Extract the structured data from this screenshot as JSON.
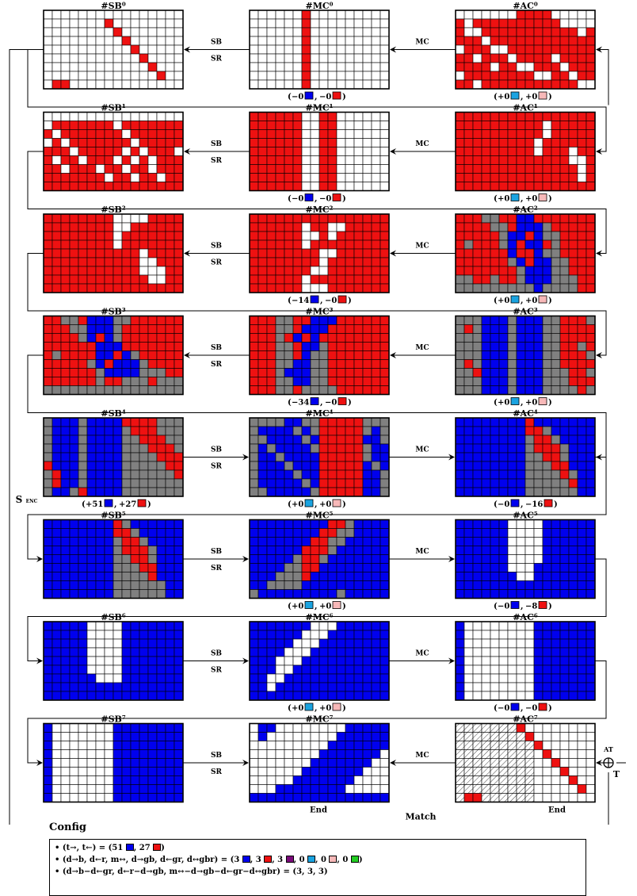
{
  "colors": {
    "blue": "#0000ee",
    "red": "#ee1111",
    "gray": "#808080",
    "white": "#ffffff",
    "cyan": "#1aa3e0",
    "pink": "#f7b8b8",
    "purple": "#7a0a7a",
    "green": "#22cc22"
  },
  "ops": {
    "sb": "SB",
    "sr": "SR",
    "mc": "MC"
  },
  "enc_label": "S",
  "enc_sub": "ENC",
  "at_label": "AT",
  "t_label": "T",
  "match_label": "Match",
  "end_label": "End",
  "cfg_title": "Config",
  "config": [
    {
      "text": "(t→, t←) = (51 ■, 27 ■)"
    },
    {
      "text": "(d→b, d←r, m↔, d→gb, d←gr, d↔gbr) = (3 ■, 3 ■, 3 ■, 0 ■, 0 ■, 0 ■)"
    },
    {
      "text": "(d→b−d←gr, d←r−d→gb, m↔−d→gb−d←gr−d↔gbr) = (3, 3, 3)"
    }
  ],
  "cfg_parts": {
    "r1a": "(t→, t←) = (51",
    "r1b": ", 27",
    "r1c": ")",
    "r2a": "(d→b, d←r, m↔, d→gb, d←gr, d↔gbr) = (3",
    "r2b": ", 3",
    "r2c": ", 3",
    "r2d": ", 0",
    "r2e": ", 0",
    "r2f": ", 0",
    "r2g": ")",
    "r3": "(d→b−d←gr, d←r−d→gb, m↔−d→gb−d←gr−d↔gbr) = (3, 3, 3)"
  },
  "rounds": [
    {
      "sb": "#SB⁰",
      "mc": "#MC⁰",
      "ac": "#AC⁰",
      "sbg": [
        "wwwwwwwwwwwwwwww",
        "wwwwwwwrwwwwwwww",
        "wwwwwwwwrwwwwwww",
        "wwwwwwwwwrwwwwww",
        "wwwwwwwwwwrwwwww",
        "wwwwwwwwwwwrwwww",
        "wwwwwwwwwwwwrwww",
        "wwwwwwwwwwwwwrww",
        "wrrwwwwwwwwwwwww"
      ],
      "mcg": [
        "wwwwwwrwwwwwwwww",
        "wwwwwwrwwwwwwwww",
        "wwwwwwrwwwwwwwww",
        "wwwwwwrwwwwwwwww",
        "wwwwwwrwwwwwwwww",
        "wwwwwwrwwwwwwwww",
        "wwwwwwrwwwwwwwww",
        "wwwwwwrwwwwwwwww",
        "wwwwwwrwwwwwwwww"
      ],
      "acg": [
        "wwwwwwwrrrrwwwww",
        "rwrrrrrrrrrrwwww",
        "rwwrrrrrrrrrrrwr",
        "rrrwrrrrrrrrrrrr",
        "wrrrwwrrrrrrrrrr",
        "rrwrrrwrrrrwrrrr",
        "rrrrwrrwwrrrwrrr",
        "wrrrrrrrrwwrrwrr",
        "rrwrrrrrrrrrrrww"
      ],
      "bal": [
        {
          "side": "mc",
          "items": [
            [
              "−0",
              "blue"
            ],
            [
              "−0",
              "red"
            ]
          ]
        },
        {
          "side": "ac",
          "items": [
            [
              "+0",
              "cyan"
            ],
            [
              "+0",
              "pink"
            ]
          ]
        }
      ]
    },
    {
      "sb": "#SB¹",
      "mc": "#MC¹",
      "ac": "#AC¹",
      "sbg": [
        "wwwwwwwwwwwwwwww",
        "wrrrrrrrwrrrrrrr",
        "rwrrrrrrrwrrrrrr",
        "wrwrrrrrrrwrrrrr",
        "rrrwrrrrrwrwrrrw",
        "rwrrwrrrwrwrwrrr",
        "rrwrrrwrrwrrwrrr",
        "rrrrrrrwrrwrrwrr",
        "rrrrrrrrrrrrrrrr"
      ],
      "mcg": [
        "rrrrrrwwrrwwwwww",
        "rrrrrrwwrrwwwwww",
        "rrrrrrwwrrwwwwww",
        "rrrrrrwwrrwwwwww",
        "rrrrrrwwrrwwwwww",
        "rrrrrrwwrrwwwwww",
        "rrrrrrwwrrwwwwww",
        "rrrrrrwwrrwwwwww",
        "rrrrrrwwrrwwwwww"
      ],
      "acg": [
        "rrrrrrrrrrrrrrrr",
        "rrrrrrrrrrwrrrrr",
        "rrrrrrrrrrwrrrrr",
        "rrrrrrrrrwrrrrrr",
        "rrrrrrrrrwrrrwrr",
        "rrrrrrrrrrrrrwwr",
        "rrrrrrrrrrrrrrwr",
        "rrrrrrrrrrrrrrwr",
        "rrrrrrrrrrrrrrrr"
      ],
      "bal": [
        {
          "side": "mc",
          "items": [
            [
              "−0",
              "blue"
            ],
            [
              "−0",
              "red"
            ]
          ]
        },
        {
          "side": "ac",
          "items": [
            [
              "+0",
              "cyan"
            ],
            [
              "+0",
              "pink"
            ]
          ]
        }
      ]
    },
    {
      "sb": "#SB²",
      "mc": "#MC²",
      "ac": "#AC²",
      "sbg": [
        "rrrrrrrrwwwwrrrr",
        "rrrrrrrrwwrrrrrr",
        "rrrrrrrrwrrrrrrr",
        "rrrrrrrrwrrrrrrr",
        "rrrrrrrrrrrwrrrr",
        "rrrrrrrrrrrwwrrr",
        "rrrrrrrrrrrwwwrr",
        "rrrrrrrrrrrrwwrr",
        "rrrrrrrrrrrrrrrr"
      ],
      "mcg": [
        "rrrrrrrrrrrrrrrr",
        "rrrrrrwrrwwrrrrr",
        "rrrrrrwwrwrrrrrr",
        "rrrrrrwrrrrrrrrr",
        "rrrrrrrrwwrrrrrr",
        "rrrrrrrrwrrrrrrr",
        "rrrrrrrwwrrrrrrr",
        "rrrrrrwrrrrrrrrr",
        "rrrrrrwwwrrrrrrr"
      ],
      "acg": [
        "rrrggrrbbrrrrrrr",
        "rrrrggrbbbgrrrrr",
        "rrrrrgbbrbggrrrr",
        "rgrrrgbrbbrgrrrr",
        "rrrrrrbrrbggrrrr",
        "rrrrrrgbrbbggrrr",
        "rrrrrrrgbbbggrrr",
        "ggrrgrrgbbbgggrr",
        "gggggggggbggggrr"
      ],
      "bal": [
        {
          "side": "mc",
          "items": [
            [
              "−14",
              "blue"
            ],
            [
              "−0",
              "red"
            ]
          ]
        },
        {
          "side": "ac",
          "items": [
            [
              "+0",
              "cyan"
            ],
            [
              "+0",
              "pink"
            ]
          ]
        }
      ]
    },
    {
      "sb": "#SB³",
      "mc": "#MC³",
      "ac": "#AC³",
      "sbg": [
        "rrggrbbbggrrrrrr",
        "rrrggbbbgrrrrrrr",
        "rrrrgbrbgrrrrrrr",
        "rrrrrrbbbrrrrrrr",
        "rgrrrrbbrbgrrrrr",
        "rrrrrgbrbbbgrrrr",
        "rrrrrrgbbbbgggrr",
        "rrrrrrgrrgggrggg",
        "gggggggggggggggg"
      ],
      "mcg": [
        "rrrggrrbbbrrrrrr",
        "rrrggrbbbrrrrrrr",
        "rrrgrbrbrrrrrrrr",
        "rrrggrbbgrrrrrrr",
        "rrrggrbggrrrrrrr",
        "rrrggbbggrrrrrrr",
        "rrrgbbbggrrrrrrr",
        "rrrggbbggrrrrrrr",
        "rrrggrggggrrrrrr"
      ],
      "acg": [
        "gggbbbgbbbggrrrg",
        "grgbbbgbbbggrrrr",
        "gggbbbgbbbggrrrr",
        "gggbbbgbbbggrrgr",
        "gggbbbgbbbggrrrg",
        "grgbbbgbbbggrrrr",
        "ggrbbbgbbbgggrrg",
        "gggbbbgbbbgggrrr",
        "gggbbbgbbbggggrg"
      ],
      "bal": [
        {
          "side": "mc",
          "items": [
            [
              "−34",
              "blue"
            ],
            [
              "−0",
              "red"
            ]
          ]
        },
        {
          "side": "ac",
          "items": [
            [
              "+0",
              "cyan"
            ],
            [
              "+0",
              "pink"
            ]
          ]
        }
      ]
    },
    {
      "sb": "#SB⁴",
      "mc": "#MC⁴",
      "ac": "#AC⁴",
      "sbg": [
        "gbbbgbbbbrrrrggg",
        "gbbbgbbbbgrrrggg",
        "gbbbgbbbbggrrrgg",
        "gbbbgbbbbgggrrrg",
        "gbbbgbbbbggggrrr",
        "rbbbgbbbbgggggrr",
        "grbbgbbbbggggggr",
        "grbbgbbbbggggggg",
        "gbbgrbbbbggggggg"
      ],
      "mcg": [
        "ggggbbggrrrrrggg",
        "gbbbbgbgrrrrrgbg",
        "ggbbbbgbrrrrrbbg",
        "gbgbbbbgrrrrrgbb",
        "gbbgbbbbrrrrrgbb",
        "gbbbgbbbrrrrrbgb",
        "gbbbbgbbrrrrrbbg",
        "gbbbbbgbrrrrrbbg",
        "ggbbbbbgrrrrrbbg"
      ],
      "acg": [
        "bbbbbbbbrbbbbbbb",
        "bbbbbbbbrrgbbbbb",
        "bbbbbbbbgrrgbbbb",
        "bbbbbbbbgrrrgbbb",
        "bbbbbbbbggrrgbbb",
        "bbbbbbbbgggrrbbb",
        "bbbbbbbbggggrgbb",
        "bbbbbbbbgggggrbb",
        "bbbbbbbbggggggbb"
      ],
      "bal": [
        {
          "side": "sb",
          "items": [
            [
              "+51",
              "blue"
            ],
            [
              "+27",
              "red"
            ]
          ]
        },
        {
          "side": "mc",
          "items": [
            [
              "+0",
              "cyan"
            ],
            [
              "+0",
              "pink"
            ]
          ]
        },
        {
          "side": "ac",
          "items": [
            [
              "−0",
              "blue"
            ],
            [
              "−16",
              "red"
            ]
          ]
        }
      ]
    },
    {
      "sb": "#SB⁵",
      "mc": "#MC⁵",
      "ac": "#AC⁵",
      "sbg": [
        "bbbbbbbbrgbbbbbb",
        "bbbbbbbbrrgbbbbb",
        "bbbbbbbbgrrgbbbb",
        "bbbbbbbbgrrrgbbb",
        "bbbbbbbbggrrgbbb",
        "bbbbbbbbgggrrbbb",
        "bbbbbbbbggggrbbb",
        "bbbbbbbbggggggbb",
        "bbbbbbbbggggggbb"
      ],
      "mcg": [
        "bbbbbbbbbrrgbbbb",
        "bbbbbbbbrrggbbbb",
        "bbbbbbbrrggbbbbb",
        "bbbbbbrrrgbbbbbb",
        "bbbbbgrrgbbbbbbb",
        "bbbbggrrbbbbbbbb",
        "bbbgggrbbbbbbbbb",
        "bbggggbbbbbbbbbb",
        "gbbbbbbbbbgbbbbb"
      ],
      "acg": [
        "bbbbbbwwwwbbbbbb",
        "bbbbbbwwwwbbbbbb",
        "bbbbbbwwwwbbbbbb",
        "bbbbbbwwwwbbbbbb",
        "bbbbbbwwwwbbbbbb",
        "bbbbbbwwwbbbbbbb",
        "bbbbbbbwwbbbbbbb",
        "bbbbbbbbbbbbbbbb",
        "bbbbbbbbbbbbbbbb"
      ],
      "bal": [
        {
          "side": "mc",
          "items": [
            [
              "+0",
              "cyan"
            ],
            [
              "+0",
              "pink"
            ]
          ]
        },
        {
          "side": "ac",
          "items": [
            [
              "−0",
              "blue"
            ],
            [
              "−8",
              "red"
            ]
          ]
        }
      ]
    },
    {
      "sb": "#SB⁶",
      "mc": "#MC⁶",
      "ac": "#AC⁶",
      "sbg": [
        "bbbbbwwwwbbbbbbb",
        "bbbbbwwwwbbbbbbb",
        "bbbbbwwwwbbbbbbb",
        "bbbbbwwwwbbbbbbb",
        "bbbbbwwwwbbbbbbb",
        "bbbbbwwwwbbbbbbb",
        "bbbbbbwwwbbbbbbb",
        "bbbbbbbbbbbbbbbb",
        "bbbbbbbbbbbbbbbb"
      ],
      "mcg": [
        "bbbbbbbwwwbbbbbb",
        "bbbbbbwwwbbbbbbb",
        "bbbbbwwwbbbbbbbb",
        "bbbbwwwbbbbbbbbb",
        "bbbwwwbbbbbbbbbb",
        "bbbwwbbbbbbbbbbb",
        "bbwwbbbbbbbbbbbb",
        "bbwbbbbbbbbbbbbb",
        "bbbbbbbbbbbbbbbb"
      ],
      "acg": [
        "bwwwwwwwwbbbbbbb",
        "bwwwwwwwwbbbbbbb",
        "bwwwwwwwwbbbbbbb",
        "bwwwwwwwwbbbbbbb",
        "bwwwwwwwwbbbbbbb",
        "bwwwwwwwwbbbbbbb",
        "bwwwwwwwwbbbbbbb",
        "bwwwwwwwwbbbbbbb",
        "bwwwwwwwwbbbbbbb"
      ],
      "bal": [
        {
          "side": "mc",
          "items": [
            [
              "+0",
              "cyan"
            ],
            [
              "+0",
              "pink"
            ]
          ]
        },
        {
          "side": "ac",
          "items": [
            [
              "−0",
              "blue"
            ],
            [
              "−0",
              "red"
            ]
          ]
        }
      ]
    },
    {
      "sb": "#SB⁷",
      "mc": "#MC⁷",
      "ac": "#AC⁷",
      "sbg": [
        "bwwwwwwwbbbbbbbb",
        "bwwwwwwwbbbbbbbb",
        "bwwwwwwwbbbbbbbb",
        "bwwwwwwwbbbbbbbb",
        "bwwwwwwwbbbbbbbb",
        "bwwwwwwwbbbbbbbb",
        "bwwwwwwwbbbbbbbb",
        "bwwwwwwwbbbbbbbb",
        "bwwwwwwwbbbbbbbb"
      ],
      "mcg": [
        "wbbwwwwwwwwbbbbb",
        "wbwwwwwwwwbbbbbb",
        "wwwwwwwwwbbbbbbb",
        "wwwwwwwwbbbbbbbw",
        "wwwwwwwbbbbbbbww",
        "wwwwwwbbbbbbbwww",
        "wwwwwbbbbbbbwwww",
        "wwwbbbbbbbbwwwww",
        "bbbbbbbbbbbbbbbb"
      ],
      "acg": [
        "hhhhhhhrwwwwwwww",
        "hhhhhhhhrwwwwwww",
        "hhhhhhhhhrwwwwww",
        "hhhhhhhhhwrwwwww",
        "hhhhhhhhhwwrwwww",
        "hhhhhhhhhwwwrwww",
        "hhhhhhhhhwwwwrww",
        "hhhhhhhhhwwwwwrw",
        "hrrhhhhhhwwwwwww"
      ],
      "bal": []
    }
  ]
}
